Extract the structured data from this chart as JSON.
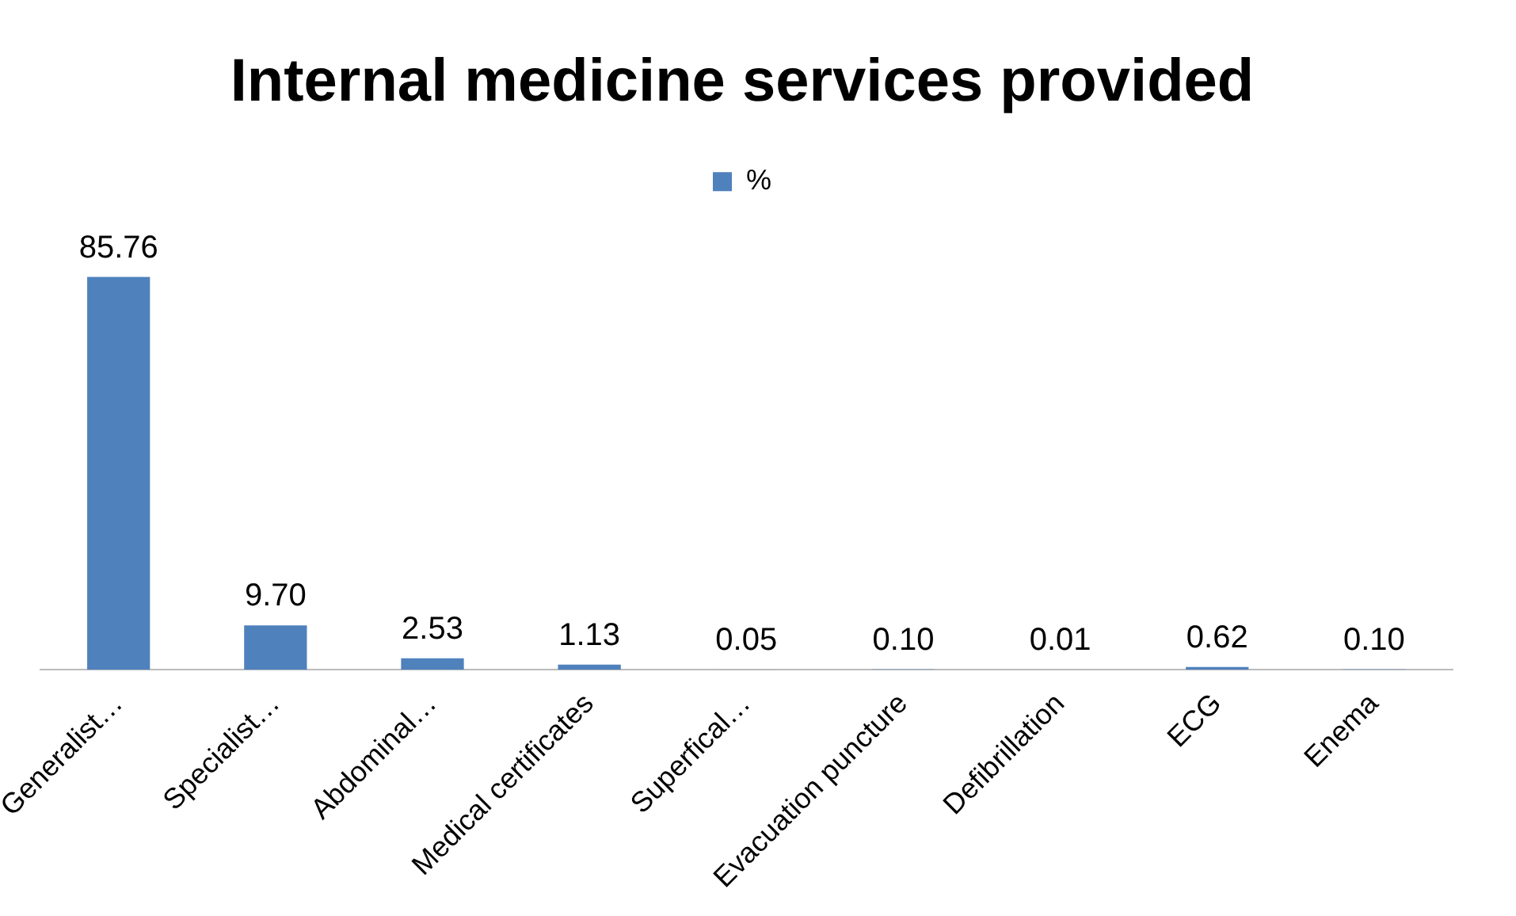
{
  "chart_data": {
    "type": "bar",
    "title": "Internal medicine services provided",
    "categories": [
      "Generalist…",
      "Specialist…",
      "Abdominal…",
      "Medical certificates",
      "Superfical…",
      "Evacuation puncture",
      "Defibrillation",
      "ECG",
      "Enema"
    ],
    "series": [
      {
        "name": "%",
        "color": "#4f81bd",
        "values": [
          85.76,
          9.7,
          2.53,
          1.13,
          0.05,
          0.1,
          0.01,
          0.62,
          0.1
        ],
        "value_labels": [
          "85.76",
          "9.70",
          "2.53",
          "1.13",
          "0.05",
          "0.10",
          "0.01",
          "0.62",
          "0.10"
        ]
      }
    ],
    "legend": "top"
  }
}
